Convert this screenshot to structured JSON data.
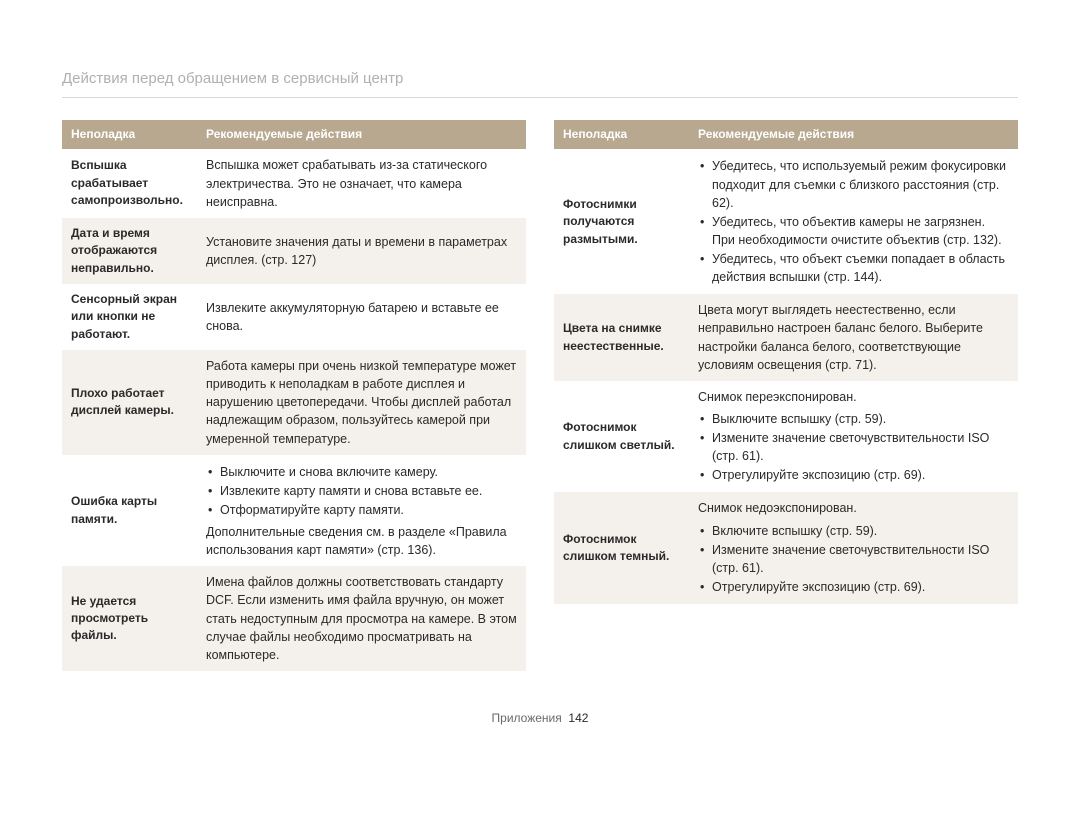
{
  "page": {
    "title": "Действия перед обращением в сервисный центр",
    "footer_label": "Приложения",
    "footer_page": "142"
  },
  "colors": {
    "header_bg": "#b7a88f",
    "header_fg": "#ffffff",
    "alt_row_bg": "#f4f0eb",
    "title_color": "#b0b0b0",
    "rule_color": "#d8d8d8",
    "text_color": "#2a2a2a"
  },
  "table": {
    "col1": "Неполадка",
    "col2": "Рекомендуемые действия"
  },
  "left": {
    "r1": {
      "issue": "Вспышка срабатывает самопроизвольно.",
      "text": "Вспышка может срабатывать из-за статического электричества. Это не означает, что камера неисправна."
    },
    "r2": {
      "issue": "Дата и время отображаются неправильно.",
      "text": "Установите значения даты и времени в параметрах дисплея. (стр. 127)"
    },
    "r3": {
      "issue": "Сенсорный экран или кнопки не работают.",
      "text": "Извлеките аккумуляторную батарею и вставьте ее снова."
    },
    "r4": {
      "issue": "Плохо работает дисплей камеры.",
      "text": "Работа камеры при очень низкой температуре может приводить к неполадкам в работе дисплея и нарушению цветопередачи. Чтобы дисплей работал надлежащим образом, пользуйтесь камерой при умеренной температуре."
    },
    "r5": {
      "issue": "Ошибка карты памяти.",
      "b1": "Выключите и снова включите камеру.",
      "b2": "Извлеките карту памяти и снова вставьте ее.",
      "b3": "Отформатируйте карту памяти.",
      "trail": "Дополнительные сведения см. в разделе «Правила использования карт памяти» (стр. 136)."
    },
    "r6": {
      "issue": "Не удается просмотреть файлы.",
      "text": "Имена файлов должны соответствовать стандарту DCF. Если изменить имя файла вручную, он может стать недоступным для просмотра на камере. В этом случае файлы необходимо просматривать на компьютере."
    }
  },
  "right": {
    "r1": {
      "issue": "Фотоснимки получаются размытыми.",
      "b1": "Убедитесь, что используемый режим фокусировки подходит для съемки с близкого расстояния (стр. 62).",
      "b2": "Убедитесь, что объектив камеры не загрязнен. При необходимости очистите объектив (стр. 132).",
      "b3": "Убедитесь, что объект съемки попадает в область действия вспышки (стр. 144)."
    },
    "r2": {
      "issue": "Цвета на снимке неестественные.",
      "text": "Цвета могут выглядеть неестественно, если неправильно настроен баланс белого. Выберите настройки баланса белого, соответствующие условиям освещения (стр. 71)."
    },
    "r3": {
      "issue": "Фотоснимок слишком светлый.",
      "lead": "Снимок переэкспонирован.",
      "b1": "Выключите вспышку (стр. 59).",
      "b2": "Измените значение светочувствительности ISO (стр. 61).",
      "b3": "Отрегулируйте экспозицию (стр. 69)."
    },
    "r4": {
      "issue": "Фотоснимок слишком темный.",
      "lead": "Снимок недоэкспонирован.",
      "b1": "Включите вспышку (стр. 59).",
      "b2": "Измените значение светочувствительности ISO (стр. 61).",
      "b3": "Отрегулируйте экспозицию (стр. 69)."
    }
  }
}
